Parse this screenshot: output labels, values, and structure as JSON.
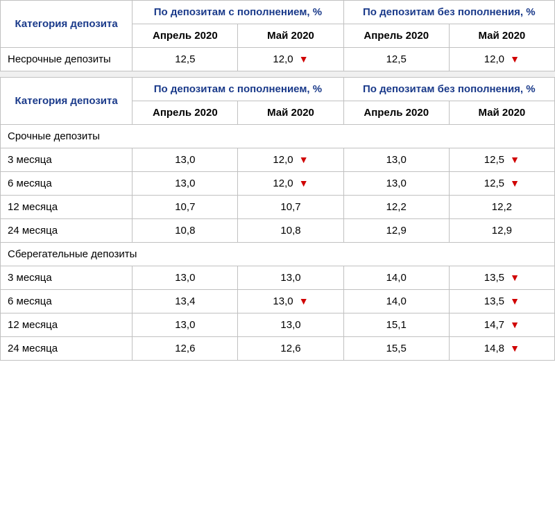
{
  "headers": {
    "category": "Категория депозита",
    "group_refill": "По депозитам с пополнением, %",
    "group_norefill": "По депозитам без пополнения, %",
    "apr": "Апрель 2020",
    "may": "Май 2020"
  },
  "table1": {
    "rows": [
      {
        "label": "Несрочные депозиты",
        "a_apr": "12,5",
        "a_may": "12,0",
        "a_may_down": true,
        "b_apr": "12,5",
        "b_may": "12,0",
        "b_may_down": true
      }
    ]
  },
  "table2": {
    "section1": "Срочные депозиты",
    "rows1": [
      {
        "label": "3 месяца",
        "a_apr": "13,0",
        "a_may": "12,0",
        "a_may_down": true,
        "b_apr": "13,0",
        "b_may": "12,5",
        "b_may_down": true
      },
      {
        "label": "6 месяца",
        "a_apr": "13,0",
        "a_may": "12,0",
        "a_may_down": true,
        "b_apr": "13,0",
        "b_may": "12,5",
        "b_may_down": true
      },
      {
        "label": "12 месяца",
        "a_apr": "10,7",
        "a_may": "10,7",
        "a_may_down": false,
        "b_apr": "12,2",
        "b_may": "12,2",
        "b_may_down": false
      },
      {
        "label": "24 месяца",
        "a_apr": "10,8",
        "a_may": "10,8",
        "a_may_down": false,
        "b_apr": "12,9",
        "b_may": "12,9",
        "b_may_down": false
      }
    ],
    "section2": "Сберегательные депозиты",
    "rows2": [
      {
        "label": "3 месяца",
        "a_apr": "13,0",
        "a_may": "13,0",
        "a_may_down": false,
        "b_apr": "14,0",
        "b_may": "13,5",
        "b_may_down": true
      },
      {
        "label": "6 месяца",
        "a_apr": "13,4",
        "a_may": "13,0",
        "a_may_down": true,
        "b_apr": "14,0",
        "b_may": "13,5",
        "b_may_down": true
      },
      {
        "label": "12 месяца",
        "a_apr": "13,0",
        "a_may": "13,0",
        "a_may_down": false,
        "b_apr": "15,1",
        "b_may": "14,7",
        "b_may_down": true
      },
      {
        "label": "24 месяца",
        "a_apr": "12,6",
        "a_may": "12,6",
        "a_may_down": false,
        "b_apr": "15,5",
        "b_may": "14,8",
        "b_may_down": true
      }
    ]
  },
  "style": {
    "header_color": "#1a3a8a",
    "border_color": "#c0c0c0",
    "triangle_color": "#d00000",
    "font_size": 15
  }
}
